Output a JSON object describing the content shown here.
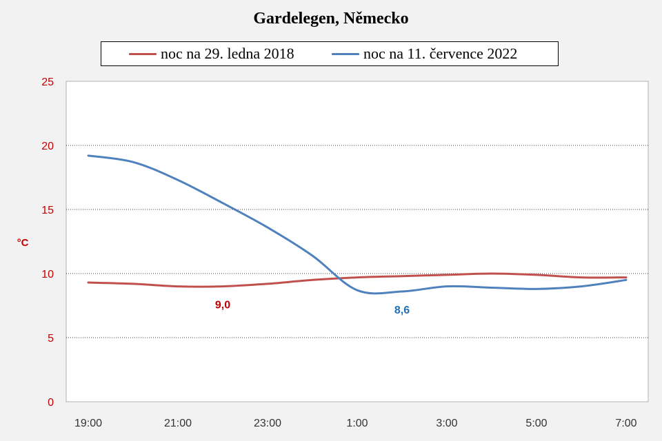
{
  "chart_data": {
    "type": "line",
    "title": "Gardelegen, Německo",
    "xlabel": "",
    "ylabel": "°C",
    "categories": [
      "19:00",
      "20:00",
      "21:00",
      "22:00",
      "23:00",
      "0:00",
      "1:00",
      "2:00",
      "3:00",
      "4:00",
      "5:00",
      "6:00",
      "7:00"
    ],
    "tick_labels": [
      "19:00",
      "21:00",
      "23:00",
      "1:00",
      "3:00",
      "5:00",
      "7:00"
    ],
    "ylim": [
      0,
      25
    ],
    "yticks": [
      "0",
      "5",
      "10",
      "15",
      "20",
      "25"
    ],
    "grid": true,
    "legend": "top",
    "series": [
      {
        "name": "noc na 29. ledna 2018",
        "color": "#c0504d",
        "values": [
          9.3,
          9.2,
          9.0,
          9.0,
          9.2,
          9.5,
          9.7,
          9.8,
          9.9,
          10.0,
          9.9,
          9.7,
          9.7
        ]
      },
      {
        "name": "noc na 11. července 2022",
        "color": "#4f81bd",
        "values": [
          19.2,
          18.7,
          17.3,
          15.5,
          13.6,
          11.4,
          8.7,
          8.6,
          9.0,
          8.9,
          8.8,
          9.0,
          9.5
        ]
      }
    ],
    "annotations": [
      {
        "text": "9,0",
        "series": 0,
        "index": 3,
        "color": "#c00000"
      },
      {
        "text": "8,6",
        "series": 1,
        "index": 7,
        "color": "#1f6fb4"
      }
    ],
    "colors": {
      "ytick": "#c00000",
      "ylabel": "#c00000",
      "grid": "#000000",
      "background": "#f2f2f2",
      "plot": "#ffffff"
    }
  }
}
